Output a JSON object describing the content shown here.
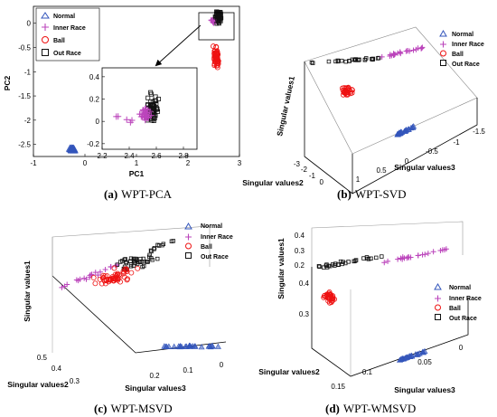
{
  "colors": {
    "normal": "#3355bb",
    "inner": "#bb44bb",
    "ball": "#ee1111",
    "out": "#111111"
  },
  "legend": [
    "Normal",
    "Inner Race",
    "Ball",
    "Out Race"
  ],
  "chart_data": [
    {
      "id": "a",
      "type": "scatter",
      "caption_label": "(a)",
      "caption_text": "WPT-PCA",
      "xlabel": "PC1",
      "ylabel": "PC2",
      "xlim": [
        -1,
        3
      ],
      "ylim": [
        -2.75,
        0.35
      ],
      "xticks": [
        "-1",
        "0",
        "1",
        "2",
        "3"
      ],
      "yticks": [
        "0",
        "-0.5",
        "-1",
        "-1.5",
        "-2",
        "-2.5"
      ],
      "series": [
        {
          "name": "Normal",
          "center": [
            -0.25,
            -2.6
          ]
        },
        {
          "name": "Inner Race",
          "center": [
            2.5,
            0.05
          ]
        },
        {
          "name": "Ball",
          "center": [
            2.55,
            -0.7
          ]
        },
        {
          "name": "Out Race",
          "center": [
            2.6,
            0.1
          ]
        }
      ],
      "inset": {
        "xlim": [
          2.2,
          2.9
        ],
        "ylim": [
          -0.25,
          0.48
        ],
        "xticks": [
          "2.2",
          "2.4",
          "2.6",
          "2.8"
        ],
        "yticks": [
          "0.4",
          "0.2",
          "0",
          "-0.2"
        ]
      }
    },
    {
      "id": "b",
      "type": "scatter3d",
      "caption_label": "(b)",
      "caption_text": "WPT-SVD",
      "zlabel": "Singular values1",
      "xlabel": "Singular values2",
      "ylabel": "Singular values3",
      "ticks_left": [
        "-3",
        "-2",
        "-1",
        "0"
      ],
      "ticks_right": [
        "-1.5",
        "-1",
        "-0.5",
        "0",
        "0.5",
        "1"
      ]
    },
    {
      "id": "c",
      "type": "scatter3d",
      "caption_label": "(c)",
      "caption_text": "WPT-MSVD",
      "zlabel": "Singular values1",
      "xlabel": "Singular values2",
      "ylabel": "Singular values3",
      "ticks_left": [
        "0.5",
        "0.4",
        "0.3"
      ],
      "ticks_right": [
        "0.2",
        "0.1",
        "0"
      ]
    },
    {
      "id": "d",
      "type": "scatter3d",
      "caption_label": "(d)",
      "caption_text": "WPT-WMSVD",
      "zlabel": "Singular values1",
      "xlabel": "Singular values2",
      "ylabel": "Singular values3",
      "ticks_z": [
        "0.4",
        "0.3",
        "0.2"
      ],
      "ticks_top": [
        "0.4",
        "0.3",
        "0.2",
        "0"
      ],
      "ticks_left": [
        "0.15",
        "0.1"
      ],
      "ticks_right": [
        "0.05",
        "0"
      ]
    }
  ]
}
